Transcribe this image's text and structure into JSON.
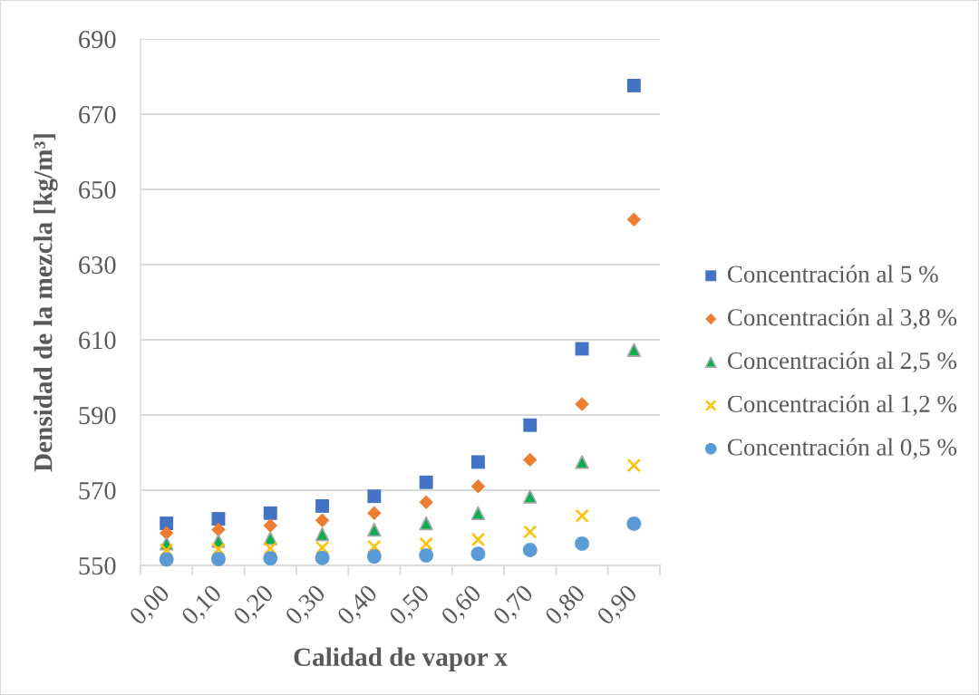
{
  "chart_data": {
    "type": "scatter",
    "xlabel": "Calidad de vapor x",
    "ylabel": "Densidad de la mezcla [kg/m³]",
    "categories": [
      "0,00",
      "0,10",
      "0,20",
      "0,30",
      "0,40",
      "0,50",
      "0,60",
      "0,70",
      "0,80",
      "0,90"
    ],
    "ylim": [
      550,
      690
    ],
    "yticks": [
      550,
      570,
      590,
      610,
      630,
      650,
      670,
      690
    ],
    "grid": "y",
    "legend": "right",
    "series": [
      {
        "name": "Concentración al 5 %",
        "color": "#4472c4",
        "marker": "square",
        "values": [
          561.2,
          562.4,
          563.9,
          565.8,
          568.4,
          572.1,
          577.5,
          587.3,
          607.6,
          677.6
        ]
      },
      {
        "name": "Concentración al 3,8 %",
        "color": "#ed7d31",
        "marker": "diamond",
        "values": [
          558.6,
          559.5,
          560.6,
          562.0,
          563.9,
          566.8,
          571.0,
          578.1,
          592.9,
          642.0
        ]
      },
      {
        "name": "Concentración al 2,5 %",
        "color": "#00b050",
        "marker": "triangle",
        "values": [
          555.8,
          556.5,
          557.2,
          558.3,
          559.5,
          561.2,
          563.9,
          568.3,
          577.5,
          607.3
        ]
      },
      {
        "name": "Concentración al 1,2 %",
        "color": "#ffc000",
        "marker": "cross",
        "values": [
          554.1,
          554.3,
          554.5,
          554.7,
          555.0,
          555.7,
          556.9,
          558.9,
          563.2,
          576.6
        ]
      },
      {
        "name": "Concentración al 0,5 %",
        "color": "#5b9bd5",
        "marker": "circle",
        "values": [
          551.6,
          551.7,
          551.9,
          552.0,
          552.4,
          552.7,
          553.1,
          554.1,
          555.8,
          561.1
        ]
      }
    ]
  }
}
